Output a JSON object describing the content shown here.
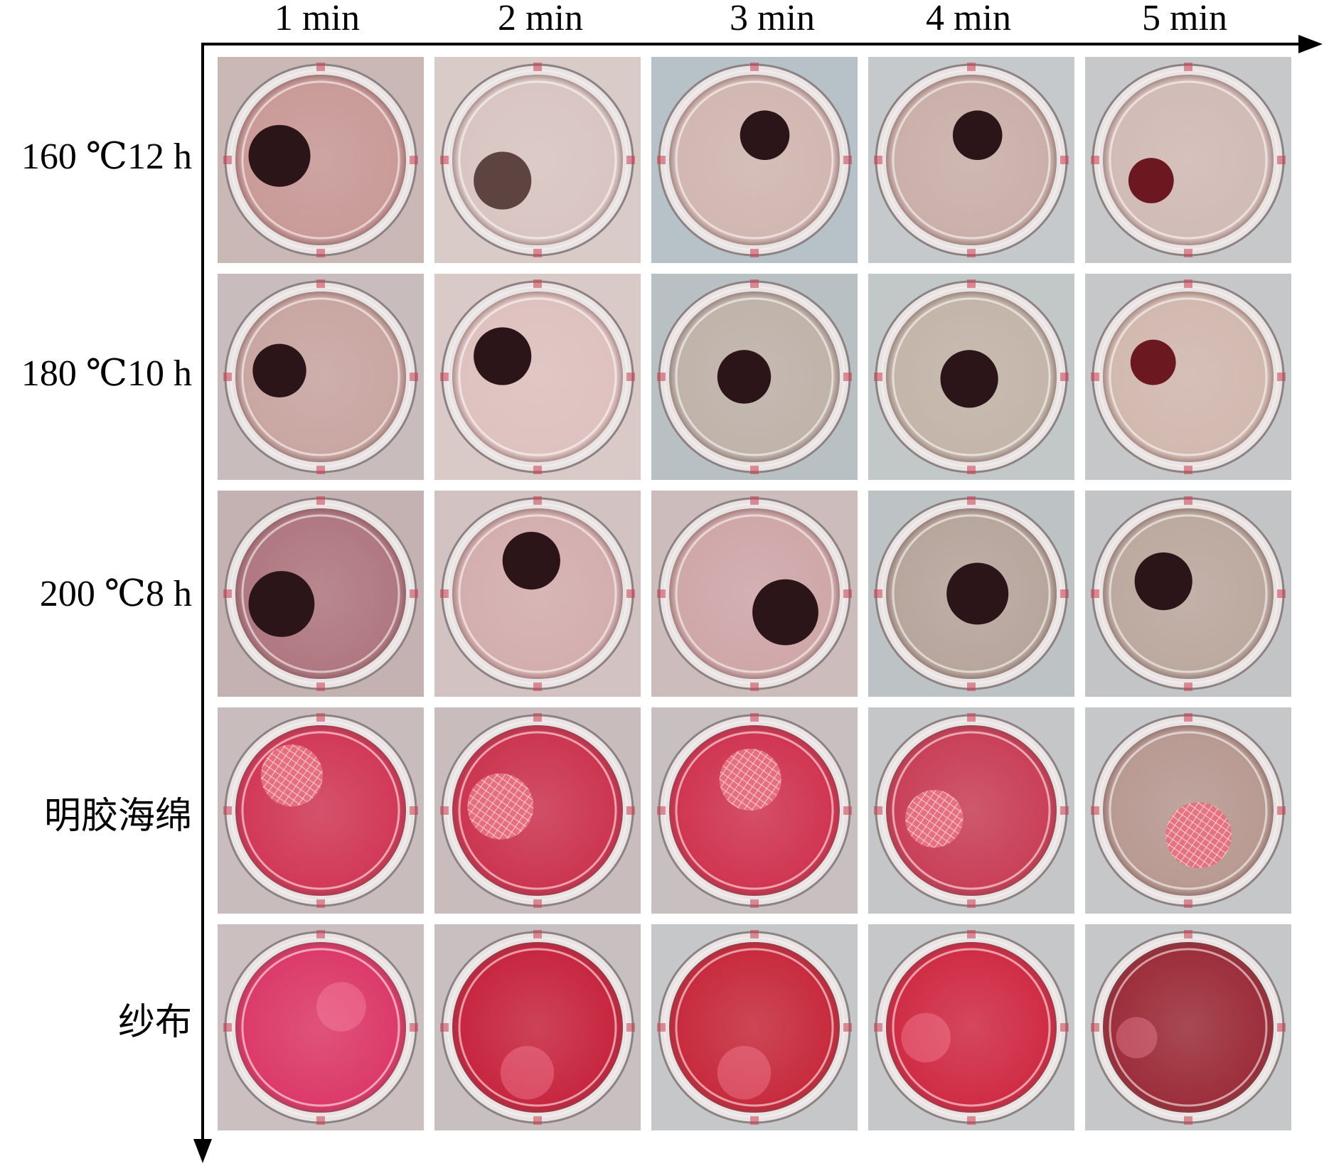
{
  "columns": [
    "1 min",
    "2 min",
    "3 min",
    "4 min",
    "5 min"
  ],
  "rows": [
    "160 ℃12 h",
    "180 ℃10 h",
    "200 ℃8 h",
    "明胶海绵",
    "纱布"
  ],
  "wells": [
    [
      {
        "bg": "#c9b8b6",
        "liquid": "#c99a98",
        "sample": "dark",
        "sx": 0.3,
        "sy": 0.48,
        "sr": 0.15
      },
      {
        "bg": "#d8cbc8",
        "liquid": "#d9c6c2",
        "sample": "dark-light",
        "sx": 0.33,
        "sy": 0.6,
        "sr": 0.14
      },
      {
        "bg": "#b7c1c8",
        "liquid": "#d2b7b2",
        "sample": "dark",
        "sx": 0.55,
        "sy": 0.38,
        "sr": 0.12
      },
      {
        "bg": "#c5c9cc",
        "liquid": "#cbb0aa",
        "sample": "dark",
        "sx": 0.53,
        "sy": 0.38,
        "sr": 0.12
      },
      {
        "bg": "#c6c8ca",
        "liquid": "#d2bbb6",
        "sample": "red-dark",
        "sx": 0.32,
        "sy": 0.6,
        "sr": 0.11
      }
    ],
    [
      {
        "bg": "#c8bdbc",
        "liquid": "#c9a6a2",
        "sample": "dark",
        "sx": 0.3,
        "sy": 0.47,
        "sr": 0.13
      },
      {
        "bg": "#d9c9c7",
        "liquid": "#dec2bf",
        "sample": "dark",
        "sx": 0.33,
        "sy": 0.4,
        "sr": 0.14
      },
      {
        "bg": "#b8c0c3",
        "liquid": "#bfb3aa",
        "sample": "dark",
        "sx": 0.45,
        "sy": 0.5,
        "sr": 0.13
      },
      {
        "bg": "#c2c7c8",
        "liquid": "#c3b5a9",
        "sample": "dark",
        "sx": 0.49,
        "sy": 0.51,
        "sr": 0.14
      },
      {
        "bg": "#c6c7c8",
        "liquid": "#d2b9b0",
        "sample": "red-dark",
        "sx": 0.33,
        "sy": 0.43,
        "sr": 0.11
      }
    ],
    [
      {
        "bg": "#c4b2b2",
        "liquid": "#b07880",
        "sample": "dark",
        "sx": 0.31,
        "sy": 0.55,
        "sr": 0.16
      },
      {
        "bg": "#d2c2c2",
        "liquid": "#d4aeae",
        "sample": "dark",
        "sx": 0.47,
        "sy": 0.34,
        "sr": 0.14
      },
      {
        "bg": "#cdbcbc",
        "liquid": "#cfa7a9",
        "sample": "dark",
        "sx": 0.65,
        "sy": 0.59,
        "sr": 0.16
      },
      {
        "bg": "#bdc2c4",
        "liquid": "#b7a69c",
        "sample": "dark",
        "sx": 0.53,
        "sy": 0.5,
        "sr": 0.15
      },
      {
        "bg": "#c2c4c6",
        "liquid": "#bca99f",
        "sample": "dark",
        "sx": 0.38,
        "sy": 0.44,
        "sr": 0.14
      }
    ],
    [
      {
        "bg": "#c8bcbc",
        "liquid": "#d13957",
        "sample": "mesh",
        "sx": 0.36,
        "sy": 0.33,
        "sr": 0.15
      },
      {
        "bg": "#c8bcbc",
        "liquid": "#cc3550",
        "sample": "mesh",
        "sx": 0.32,
        "sy": 0.48,
        "sr": 0.16
      },
      {
        "bg": "#c8bfc0",
        "liquid": "#d03551",
        "sample": "mesh",
        "sx": 0.48,
        "sy": 0.35,
        "sr": 0.15
      },
      {
        "bg": "#c5c6c7",
        "liquid": "#c94058",
        "sample": "mesh",
        "sx": 0.32,
        "sy": 0.54,
        "sr": 0.14
      },
      {
        "bg": "#c6c7c8",
        "liquid": "#b89a92",
        "sample": "mesh",
        "sx": 0.55,
        "sy": 0.62,
        "sr": 0.16
      }
    ],
    [
      {
        "bg": "#cbbfc0",
        "liquid": "#dc3a69",
        "sample": "gauze",
        "sx": 0.6,
        "sy": 0.4,
        "sr": 0.12
      },
      {
        "bg": "#c8bfc0",
        "liquid": "#c7263f",
        "sample": "gauze",
        "sx": 0.45,
        "sy": 0.72,
        "sr": 0.13
      },
      {
        "bg": "#c6c7c8",
        "liquid": "#c72b3d",
        "sample": "gauze",
        "sx": 0.45,
        "sy": 0.72,
        "sr": 0.13
      },
      {
        "bg": "#c6c7c8",
        "liquid": "#d02c45",
        "sample": "gauze",
        "sx": 0.28,
        "sy": 0.55,
        "sr": 0.12
      },
      {
        "bg": "#c6c7c8",
        "liquid": "#9c2e3a",
        "sample": "gauze",
        "sx": 0.25,
        "sy": 0.55,
        "sr": 0.1
      }
    ]
  ]
}
